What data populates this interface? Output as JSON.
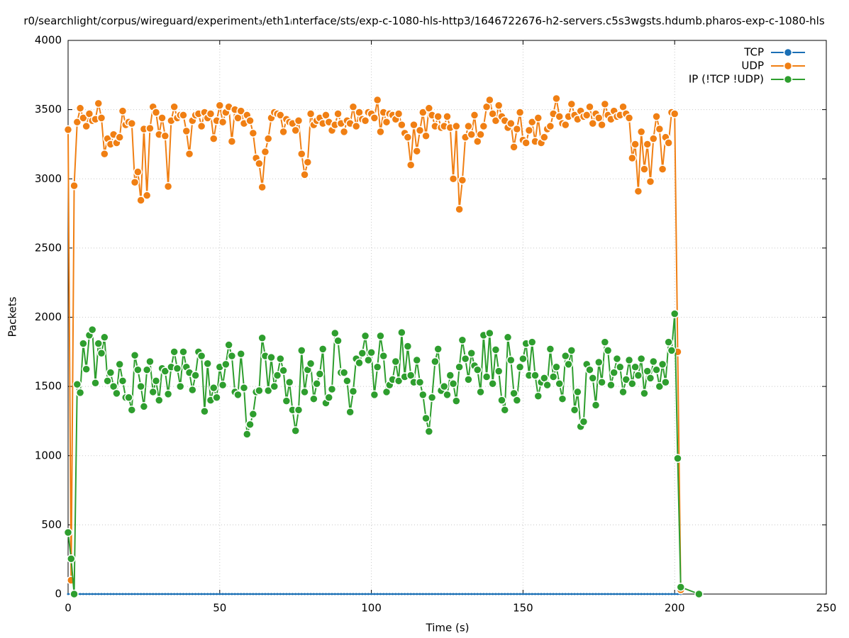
{
  "chart_data": {
    "type": "line",
    "title": "r0/searchlight/corpus/wireguard/experiment₃/eth1ᵢnterface/sts/exp-c-1080-hls-http3/1646722676-h2-servers.c5s3wgsts.hdumb.pharos-exp-c-1080-hls",
    "x_label": "Time (s)",
    "y_label": "Packets",
    "xlim": [
      0,
      250
    ],
    "xticks": [
      0,
      50,
      100,
      150,
      200,
      250
    ],
    "ylim": [
      0,
      4000
    ],
    "yticks": [
      0,
      500,
      1000,
      1500,
      2000,
      2500,
      3000,
      3500,
      4000
    ],
    "grid": true,
    "legend": "top-right",
    "x": [
      0,
      1,
      2,
      3,
      4,
      5,
      6,
      7,
      8,
      9,
      10,
      11,
      12,
      13,
      14,
      15,
      16,
      17,
      18,
      19,
      20,
      21,
      22,
      23,
      24,
      25,
      26,
      27,
      28,
      29,
      30,
      31,
      32,
      33,
      34,
      35,
      36,
      37,
      38,
      39,
      40,
      41,
      42,
      43,
      44,
      45,
      46,
      47,
      48,
      49,
      50,
      51,
      52,
      53,
      54,
      55,
      56,
      57,
      58,
      59,
      60,
      61,
      62,
      63,
      64,
      65,
      66,
      67,
      68,
      69,
      70,
      71,
      72,
      73,
      74,
      75,
      76,
      77,
      78,
      79,
      80,
      81,
      82,
      83,
      84,
      85,
      86,
      87,
      88,
      89,
      90,
      91,
      92,
      93,
      94,
      95,
      96,
      97,
      98,
      99,
      100,
      101,
      102,
      103,
      104,
      105,
      106,
      107,
      108,
      109,
      110,
      111,
      112,
      113,
      114,
      115,
      116,
      117,
      118,
      119,
      120,
      121,
      122,
      123,
      124,
      125,
      126,
      127,
      128,
      129,
      130,
      131,
      132,
      133,
      134,
      135,
      136,
      137,
      138,
      139,
      140,
      141,
      142,
      143,
      144,
      145,
      146,
      147,
      148,
      149,
      150,
      151,
      152,
      153,
      154,
      155,
      156,
      157,
      158,
      159,
      160,
      161,
      162,
      163,
      164,
      165,
      166,
      167,
      168,
      169,
      170,
      171,
      172,
      173,
      174,
      175,
      176,
      177,
      178,
      179,
      180,
      181,
      182,
      183,
      184,
      185,
      186,
      187,
      188,
      189,
      190,
      191,
      192,
      193,
      194,
      195,
      196,
      197,
      198,
      199,
      200,
      201,
      202,
      208
    ],
    "series": [
      {
        "name": "TCP",
        "color": "#1a6fb5",
        "values": [
          0,
          0,
          0,
          0,
          0,
          0,
          0,
          0,
          0,
          0,
          0,
          0,
          0,
          0,
          0,
          0,
          0,
          0,
          0,
          0,
          0,
          0,
          0,
          0,
          0,
          0,
          0,
          0,
          0,
          0,
          0,
          0,
          0,
          0,
          0,
          0,
          0,
          0,
          0,
          0,
          0,
          0,
          0,
          0,
          0,
          0,
          0,
          0,
          0,
          0,
          0,
          0,
          0,
          0,
          0,
          0,
          0,
          0,
          0,
          0,
          0,
          0,
          0,
          0,
          0,
          0,
          0,
          0,
          0,
          0,
          0,
          0,
          0,
          0,
          0,
          0,
          0,
          0,
          0,
          0,
          0,
          0,
          0,
          0,
          0,
          0,
          0,
          0,
          0,
          0,
          0,
          0,
          0,
          0,
          0,
          0,
          0,
          0,
          0,
          0,
          0,
          0,
          0,
          0,
          0,
          0,
          0,
          0,
          0,
          0,
          0,
          0,
          0,
          0,
          0,
          0,
          0,
          0,
          0,
          0,
          0,
          0,
          0,
          0,
          0,
          0,
          0,
          0,
          0,
          0,
          0,
          0,
          0,
          0,
          0,
          0,
          0,
          0,
          0,
          0,
          0,
          0,
          0,
          0,
          0,
          0,
          0,
          0,
          0,
          0,
          0,
          0,
          0,
          0,
          0,
          0,
          0,
          0,
          0,
          0,
          0,
          0,
          0,
          0,
          0,
          0,
          0,
          0,
          0,
          0,
          0,
          0,
          0,
          0,
          0,
          0,
          0,
          0,
          0,
          0,
          0,
          0,
          0,
          0,
          0,
          0,
          0,
          0,
          0,
          0,
          0,
          0,
          0,
          0,
          0,
          0,
          0,
          0,
          0,
          0,
          0,
          0,
          0,
          null
        ]
      },
      {
        "name": "UDP",
        "color": "#f07f13",
        "values": [
          3355,
          100,
          2950,
          3410,
          3510,
          3440,
          3380,
          3470,
          3420,
          3430,
          3545,
          3440,
          3180,
          3290,
          3250,
          3320,
          3260,
          3300,
          3490,
          3390,
          3410,
          3400,
          2975,
          3050,
          2845,
          3360,
          2880,
          3365,
          3520,
          3480,
          3320,
          3440,
          3310,
          2945,
          3420,
          3520,
          3440,
          3460,
          3460,
          3345,
          3180,
          3420,
          3460,
          3470,
          3380,
          3480,
          3440,
          3470,
          3290,
          3420,
          3530,
          3410,
          3480,
          3520,
          3270,
          3500,
          3440,
          3490,
          3400,
          3460,
          3420,
          3330,
          3150,
          3110,
          2940,
          3195,
          3290,
          3440,
          3480,
          3470,
          3460,
          3340,
          3430,
          3410,
          3400,
          3350,
          3420,
          3180,
          3030,
          3120,
          3470,
          3390,
          3420,
          3440,
          3400,
          3460,
          3410,
          3350,
          3390,
          3470,
          3400,
          3340,
          3420,
          3400,
          3520,
          3380,
          3480,
          3430,
          3420,
          3480,
          3470,
          3440,
          3570,
          3340,
          3480,
          3410,
          3470,
          3460,
          3430,
          3470,
          3390,
          3330,
          3300,
          3100,
          3390,
          3200,
          3350,
          3480,
          3310,
          3510,
          3460,
          3380,
          3450,
          3370,
          3380,
          3450,
          3370,
          3000,
          3380,
          2780,
          2990,
          3300,
          3380,
          3320,
          3460,
          3270,
          3320,
          3380,
          3520,
          3570,
          3470,
          3420,
          3530,
          3450,
          3420,
          3370,
          3400,
          3230,
          3360,
          3480,
          3280,
          3260,
          3350,
          3410,
          3270,
          3440,
          3260,
          3300,
          3360,
          3380,
          3470,
          3580,
          3450,
          3400,
          3390,
          3450,
          3540,
          3460,
          3430,
          3490,
          3450,
          3460,
          3520,
          3400,
          3470,
          3440,
          3390,
          3540,
          3460,
          3430,
          3490,
          3450,
          3460,
          3520,
          3470,
          3440,
          3150,
          3250,
          2910,
          3340,
          3070,
          3250,
          2980,
          3290,
          3450,
          3360,
          3070,
          3300,
          3260,
          3480,
          3470,
          1750,
          30,
          null
        ]
      },
      {
        "name": "IP (!TCP  !UDP)",
        "color": "#2e9e2e",
        "values": [
          445,
          255,
          0,
          1515,
          1455,
          1810,
          1625,
          1870,
          1910,
          1525,
          1810,
          1740,
          1855,
          1540,
          1600,
          1500,
          1450,
          1660,
          1540,
          1420,
          1420,
          1330,
          1725,
          1620,
          1500,
          1355,
          1620,
          1680,
          1460,
          1540,
          1400,
          1630,
          1610,
          1445,
          1640,
          1750,
          1630,
          1500,
          1750,
          1640,
          1600,
          1475,
          1580,
          1750,
          1720,
          1320,
          1665,
          1400,
          1490,
          1420,
          1640,
          1510,
          1660,
          1800,
          1720,
          1460,
          1440,
          1735,
          1490,
          1155,
          1225,
          1300,
          1460,
          1470,
          1850,
          1720,
          1470,
          1710,
          1500,
          1580,
          1700,
          1615,
          1395,
          1530,
          1330,
          1180,
          1330,
          1760,
          1460,
          1620,
          1665,
          1410,
          1520,
          1590,
          1770,
          1380,
          1420,
          1480,
          1885,
          1830,
          1600,
          1600,
          1540,
          1315,
          1465,
          1700,
          1670,
          1740,
          1865,
          1690,
          1745,
          1440,
          1640,
          1865,
          1720,
          1460,
          1510,
          1550,
          1680,
          1540,
          1890,
          1570,
          1790,
          1580,
          1530,
          1690,
          1530,
          1440,
          1270,
          1175,
          1420,
          1680,
          1770,
          1470,
          1500,
          1440,
          1580,
          1520,
          1395,
          1640,
          1835,
          1700,
          1550,
          1740,
          1650,
          1620,
          1460,
          1870,
          1570,
          1885,
          1520,
          1765,
          1610,
          1400,
          1330,
          1855,
          1690,
          1450,
          1400,
          1640,
          1700,
          1810,
          1580,
          1820,
          1580,
          1430,
          1530,
          1560,
          1510,
          1770,
          1570,
          1640,
          1520,
          1410,
          1720,
          1660,
          1760,
          1330,
          1460,
          1210,
          1245,
          1660,
          1620,
          1560,
          1365,
          1675,
          1530,
          1820,
          1760,
          1510,
          1600,
          1700,
          1640,
          1460,
          1550,
          1690,
          1520,
          1640,
          1580,
          1700,
          1450,
          1610,
          1560,
          1680,
          1620,
          1500,
          1660,
          1530,
          1820,
          1760,
          2025,
          980,
          50,
          0
        ]
      }
    ]
  }
}
